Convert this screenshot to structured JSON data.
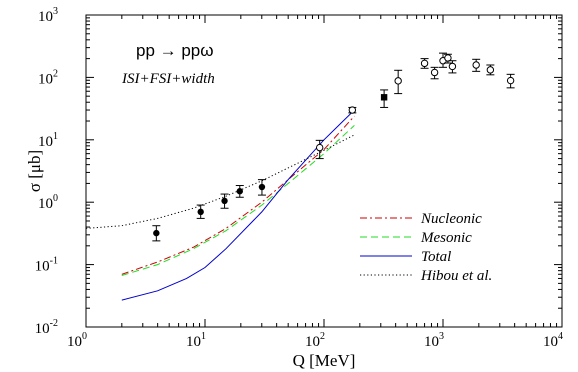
{
  "chart_data": {
    "type": "scatter",
    "title": "",
    "xlabel": "Q [MeV]",
    "ylabel": "σ [μb]",
    "xscale": "log",
    "yscale": "log",
    "xlim": [
      1,
      10000
    ],
    "ylim": [
      0.01,
      1000
    ],
    "x_ticks": [
      {
        "base": "10",
        "exp": "0"
      },
      {
        "base": "10",
        "exp": "1"
      },
      {
        "base": "10",
        "exp": "2"
      },
      {
        "base": "10",
        "exp": "3"
      },
      {
        "base": "10",
        "exp": "4"
      }
    ],
    "y_ticks": [
      {
        "base": "10",
        "exp": "-2"
      },
      {
        "base": "10",
        "exp": "-1"
      },
      {
        "base": "10",
        "exp": "0"
      },
      {
        "base": "10",
        "exp": "1"
      },
      {
        "base": "10",
        "exp": "2"
      },
      {
        "base": "10",
        "exp": "3"
      }
    ],
    "annotations": {
      "reaction": "pp → ppω",
      "model": "ISI+FSI+width"
    },
    "legend_placement": "bottom-right",
    "series": [
      {
        "name": "Nucleonic",
        "kind": "line",
        "color": "#cc0000",
        "dash": "dash-dot",
        "x": [
          2,
          4,
          8,
          15,
          30,
          50,
          100,
          180
        ],
        "y": [
          0.07,
          0.11,
          0.19,
          0.38,
          1.0,
          2.3,
          7.0,
          24
        ]
      },
      {
        "name": "Mesonic",
        "kind": "line",
        "color": "#22dd22",
        "dash": "dashed",
        "x": [
          2,
          4,
          8,
          15,
          30,
          50,
          100,
          180
        ],
        "y": [
          0.067,
          0.1,
          0.18,
          0.35,
          0.9,
          2.0,
          6.0,
          17
        ]
      },
      {
        "name": "Total",
        "kind": "line",
        "color": "#0000cc",
        "dash": "solid",
        "x": [
          2,
          4,
          7,
          10,
          15,
          30,
          50,
          100,
          180
        ],
        "y": [
          0.027,
          0.038,
          0.06,
          0.09,
          0.18,
          0.7,
          2.3,
          10,
          30
        ]
      },
      {
        "name": "Hibou et al.",
        "kind": "line",
        "color": "#000000",
        "dash": "dotted",
        "x": [
          1,
          2,
          4,
          8,
          15,
          30,
          60,
          100,
          180
        ],
        "y": [
          0.38,
          0.42,
          0.55,
          0.8,
          1.25,
          2.2,
          4.2,
          6.8,
          12
        ]
      },
      {
        "name": "",
        "kind": "points",
        "marker": "filled-circle",
        "x": [
          3.9,
          9.2,
          14.6,
          19.6,
          30.1
        ],
        "y": [
          0.32,
          0.7,
          1.05,
          1.5,
          1.75
        ],
        "err_lo": [
          0.24,
          0.55,
          0.8,
          1.2,
          1.3
        ],
        "err_hi": [
          0.42,
          0.9,
          1.35,
          1.85,
          2.3
        ]
      },
      {
        "name": "",
        "kind": "points",
        "marker": "filled-square",
        "x": [
          320
        ],
        "y": [
          48
        ],
        "err_lo": [
          33
        ],
        "err_hi": [
          63
        ]
      },
      {
        "name": "",
        "kind": "points",
        "marker": "open-circle",
        "x": [
          92,
          173,
          420,
          700,
          850,
          1000,
          1100,
          1200,
          1900,
          2500,
          3700
        ],
        "y": [
          7.5,
          30,
          88,
          168,
          120,
          185,
          205,
          150,
          158,
          132,
          89
        ],
        "err_lo": [
          5,
          27,
          55,
          140,
          95,
          145,
          170,
          118,
          125,
          110,
          68
        ],
        "err_hi": [
          9.8,
          33,
          130,
          200,
          145,
          245,
          235,
          185,
          195,
          158,
          112
        ]
      }
    ]
  }
}
